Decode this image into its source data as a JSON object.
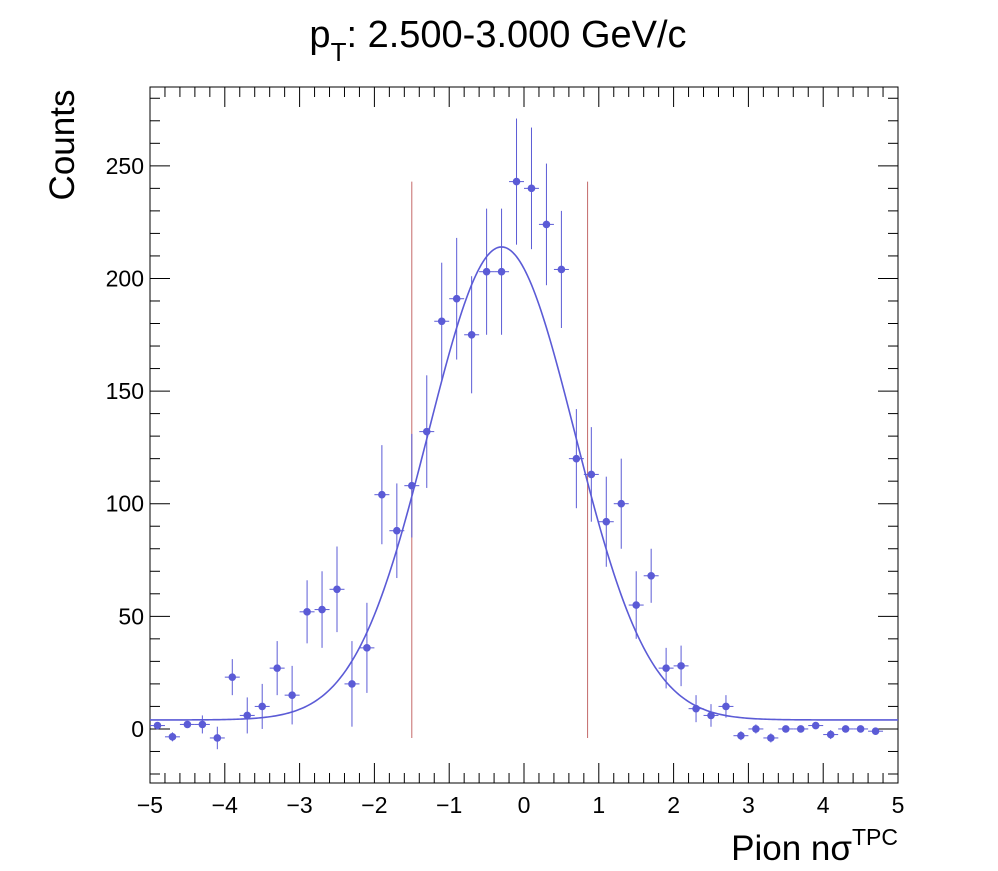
{
  "chart_data": {
    "type": "scatter",
    "title": {
      "base": "p",
      "subscript": "T",
      "rest": ": 2.500-3.000 GeV/c"
    },
    "xlabel": {
      "base": "Pion nσ",
      "superscript": "TPC"
    },
    "ylabel": "Counts",
    "xlim": [
      -5,
      5
    ],
    "ylim": [
      -24,
      285
    ],
    "x_ticks": [
      -5,
      -4,
      -3,
      -2,
      -1,
      0,
      1,
      2,
      3,
      4,
      5
    ],
    "x_tick_labels": [
      "−5",
      "−4",
      "−3",
      "−2",
      "−1",
      "0",
      "1",
      "2",
      "3",
      "4",
      "5"
    ],
    "y_ticks": [
      0,
      50,
      100,
      150,
      200,
      250
    ],
    "y_tick_labels": [
      "0",
      "50",
      "100",
      "150",
      "200",
      "250"
    ],
    "grid": false,
    "bin_half_width": 0.1,
    "series": [
      {
        "kind": "points",
        "color": "#5b5bd6",
        "x": [
          -4.9,
          -4.7,
          -4.5,
          -4.3,
          -4.1,
          -3.9,
          -3.7,
          -3.5,
          -3.3,
          -3.1,
          -2.9,
          -2.7,
          -2.5,
          -2.3,
          -2.1,
          -1.9,
          -1.7,
          -1.5,
          -1.3,
          -1.1,
          -0.9,
          -0.7,
          -0.5,
          -0.3,
          -0.1,
          0.1,
          0.3,
          0.5,
          0.7,
          0.9,
          1.1,
          1.3,
          1.5,
          1.7,
          1.9,
          2.1,
          2.3,
          2.5,
          2.7,
          2.9,
          3.1,
          3.3,
          3.5,
          3.7,
          3.9,
          4.1,
          4.3,
          4.5,
          4.7
        ],
        "y": [
          1.5,
          -3.5,
          2,
          2,
          -4,
          23,
          6,
          10,
          27,
          15,
          52,
          53,
          62,
          20,
          36,
          104,
          88,
          108,
          132,
          181,
          191,
          175,
          203,
          203,
          243,
          240,
          224,
          204,
          120,
          113,
          92,
          100,
          55,
          68,
          27,
          28,
          9,
          6,
          10,
          -3,
          0,
          -4,
          0,
          0,
          1.5,
          -2.5,
          0,
          0,
          -1
        ],
        "yerr": [
          1.5,
          2,
          1.5,
          4,
          5,
          8,
          8,
          10,
          12,
          13,
          14,
          17,
          19,
          19,
          20,
          22,
          21,
          23,
          25,
          26,
          27,
          26,
          28,
          28,
          28,
          27,
          27,
          26,
          22,
          21,
          20,
          20,
          15,
          12,
          9,
          9,
          6,
          5,
          5,
          2,
          2,
          2,
          1,
          1,
          1,
          2,
          1,
          1,
          1
        ]
      },
      {
        "kind": "fit",
        "color": "#5b5bd6",
        "amplitude": 210,
        "mean": -0.3,
        "sigma": 0.98,
        "offset": 4,
        "x_range": [
          -5,
          5
        ]
      }
    ],
    "vertical_lines": [
      {
        "color": "#c46a6a",
        "x": -1.5,
        "y_range": [
          -4,
          243
        ]
      },
      {
        "color": "#c46a6a",
        "x": 0.85,
        "y_range": [
          -4,
          243
        ]
      }
    ]
  }
}
